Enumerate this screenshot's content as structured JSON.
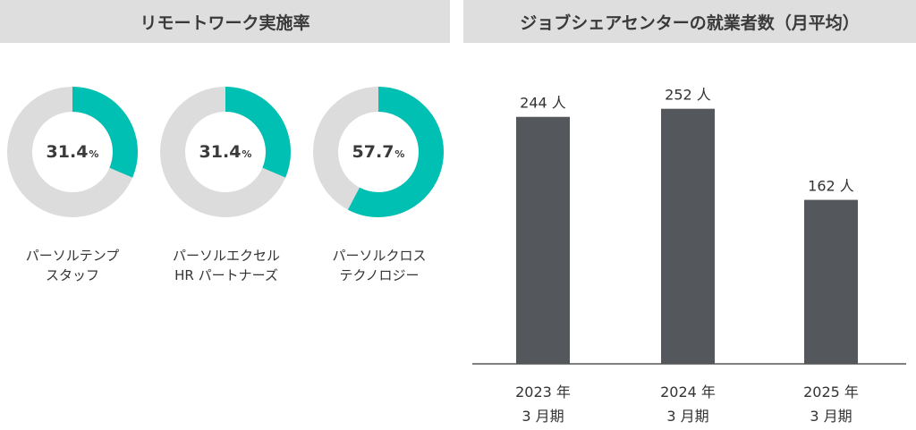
{
  "headers": {
    "remote": "リモートワーク実施率",
    "center": "ジョブシェアセンターの就業者数（月平均）"
  },
  "colors": {
    "accent": "#00bfb3",
    "donut_track": "#dcdcdc",
    "bar": "#54575b",
    "axis": "#555555"
  },
  "donuts": [
    {
      "value": 31.4,
      "value_text": "31.4",
      "unit": "%",
      "label_line1": "パーソルテンプ",
      "label_line2": "スタッフ"
    },
    {
      "value": 31.4,
      "value_text": "31.4",
      "unit": "%",
      "label_line1": "パーソルエクセル",
      "label_line2": "HR パートナーズ"
    },
    {
      "value": 57.7,
      "value_text": "57.7",
      "unit": "%",
      "label_line1": "パーソルクロス",
      "label_line2": "テクノロジー"
    }
  ],
  "chart_data": [
    {
      "type": "pie",
      "title": "リモートワーク実施率",
      "categories": [
        "パーソルテンプスタッフ",
        "パーソルエクセルHRパートナーズ",
        "パーソルクロステクノロジー"
      ],
      "values": [
        31.4,
        31.4,
        57.7
      ],
      "unit": "%"
    },
    {
      "type": "bar",
      "title": "ジョブシェアセンターの就業者数（月平均）",
      "categories": [
        "2023 年|3 月期",
        "2024 年|3 月期",
        "2025 年|3 月期"
      ],
      "values": [
        244,
        252,
        162
      ],
      "value_labels": [
        "244 人",
        "252 人",
        "162 人"
      ],
      "ylim": [
        0,
        310
      ],
      "grid": false
    }
  ]
}
